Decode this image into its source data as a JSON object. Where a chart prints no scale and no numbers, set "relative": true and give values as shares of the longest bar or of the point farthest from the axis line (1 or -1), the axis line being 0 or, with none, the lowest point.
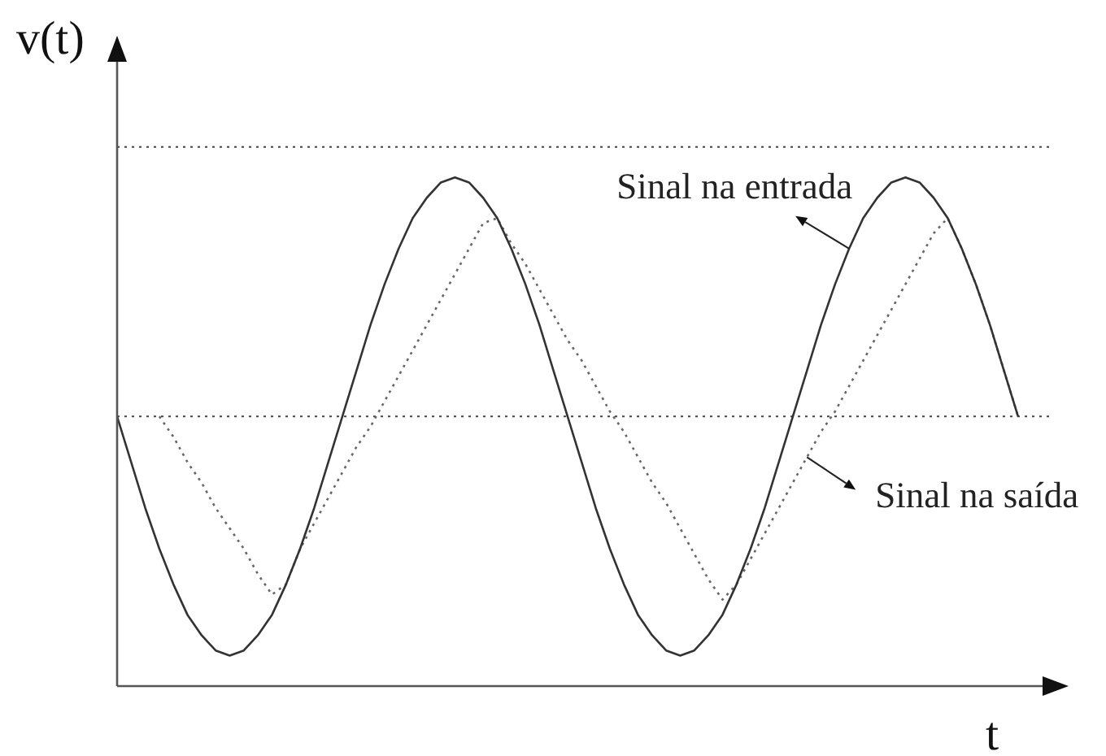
{
  "chart_data": {
    "type": "line",
    "xlabel": "t",
    "ylabel": "v(t)",
    "relative": true,
    "categories": [
      null,
      null,
      null,
      null,
      null,
      null,
      null,
      null,
      null,
      null,
      null,
      null,
      null,
      null,
      null,
      null,
      null,
      null,
      null,
      null,
      null,
      null,
      null,
      null,
      null,
      null,
      null,
      null,
      null,
      null,
      null,
      null,
      null,
      null,
      null,
      null,
      null,
      null,
      null,
      null,
      null,
      null,
      null,
      null,
      null,
      null,
      null,
      null,
      null,
      null,
      null,
      null,
      null,
      null,
      null,
      null,
      null,
      null,
      null,
      null,
      null,
      null,
      null,
      null,
      null
    ],
    "series": [
      {
        "name": "Sinal na entrada",
        "color": "#333333",
        "line_style": "solid",
        "values": [
          0.53,
          0.44,
          0.35,
          0.27,
          0.2,
          0.14,
          0.1,
          0.07,
          0.06,
          0.07,
          0.1,
          0.14,
          0.2,
          0.27,
          0.35,
          0.44,
          0.53,
          0.62,
          0.71,
          0.79,
          0.86,
          0.92,
          0.96,
          0.99,
          1.0,
          0.99,
          0.96,
          0.92,
          0.86,
          0.79,
          0.71,
          0.62,
          0.53,
          0.44,
          0.35,
          0.27,
          0.2,
          0.14,
          0.1,
          0.07,
          0.06,
          0.07,
          0.1,
          0.14,
          0.2,
          0.27,
          0.35,
          0.44,
          0.53,
          0.62,
          0.71,
          0.79,
          0.86,
          0.92,
          0.96,
          0.99,
          1.0,
          0.99,
          0.96,
          0.92,
          0.86,
          0.79,
          0.71,
          0.62,
          0.53
        ]
      },
      {
        "name": "Sinal na saída",
        "color": "#666666",
        "line_style": "dotted",
        "values": [
          null,
          null,
          null,
          0.53,
          0.49,
          0.44,
          0.4,
          0.35,
          0.31,
          0.27,
          0.22,
          0.18,
          0.2,
          0.27,
          0.32,
          0.37,
          0.42,
          0.47,
          0.51,
          0.56,
          0.61,
          0.66,
          0.71,
          0.76,
          0.81,
          0.86,
          0.91,
          0.92,
          0.87,
          0.83,
          0.78,
          0.73,
          0.68,
          0.64,
          0.59,
          0.54,
          0.5,
          0.45,
          0.4,
          0.36,
          0.31,
          0.26,
          0.21,
          0.17,
          0.2,
          0.25,
          0.3,
          0.35,
          0.4,
          0.45,
          0.5,
          0.54,
          0.59,
          0.64,
          0.69,
          0.74,
          0.79,
          0.84,
          0.89,
          0.92,
          0.86,
          0.79,
          0.71,
          0.62,
          0.53
        ]
      }
    ],
    "ref_lines": [
      {
        "axis": "y",
        "value": 1.06,
        "color": "#444444",
        "line_style": "dotted"
      },
      {
        "axis": "y",
        "value": 0.53,
        "color": "#444444",
        "line_style": "dotted"
      }
    ]
  }
}
